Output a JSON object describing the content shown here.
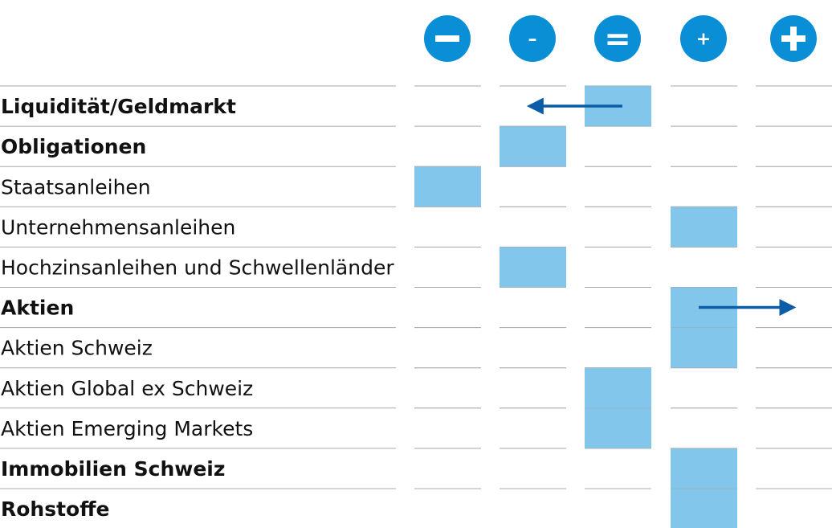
{
  "chart_data": {
    "type": "table",
    "columns": [
      {
        "key": "strong-neg",
        "symbol": "−",
        "icon": "strong-minus-icon"
      },
      {
        "key": "neg",
        "symbol": "–",
        "icon": "minus-icon"
      },
      {
        "key": "neutral",
        "symbol": "=",
        "icon": "equals-icon"
      },
      {
        "key": "pos",
        "symbol": "+",
        "icon": "plus-icon"
      },
      {
        "key": "strong-pos",
        "symbol": "+",
        "icon": "strong-plus-icon"
      }
    ],
    "rows": [
      {
        "label": "Liquidität/Geldmarkt",
        "bold": true,
        "position": 3,
        "change_to": 2
      },
      {
        "label": "Obligationen",
        "bold": true,
        "position": 2
      },
      {
        "label": "Staatsanleihen",
        "bold": false,
        "position": 1
      },
      {
        "label": "Unternehmensanleihen",
        "bold": false,
        "position": 4
      },
      {
        "label": "Hochzinsanleihen und Schwellenländer",
        "bold": false,
        "position": 2
      },
      {
        "label": "Aktien",
        "bold": true,
        "position": 4,
        "change_to": 5
      },
      {
        "label": "Aktien Schweiz",
        "bold": false,
        "position": 4
      },
      {
        "label": "Aktien Global ex Schweiz",
        "bold": false,
        "position": 3
      },
      {
        "label": "Aktien Emerging Markets",
        "bold": false,
        "position": 3
      },
      {
        "label": "Immobilien Schweiz",
        "bold": true,
        "position": 4
      },
      {
        "label": "Rohstoffe",
        "bold": true,
        "position": 4
      }
    ],
    "colors": {
      "circle": "#0a8fd6",
      "cell": "#82c6ec",
      "arrow": "#0b5da8",
      "line": "#a9a9a9"
    }
  }
}
